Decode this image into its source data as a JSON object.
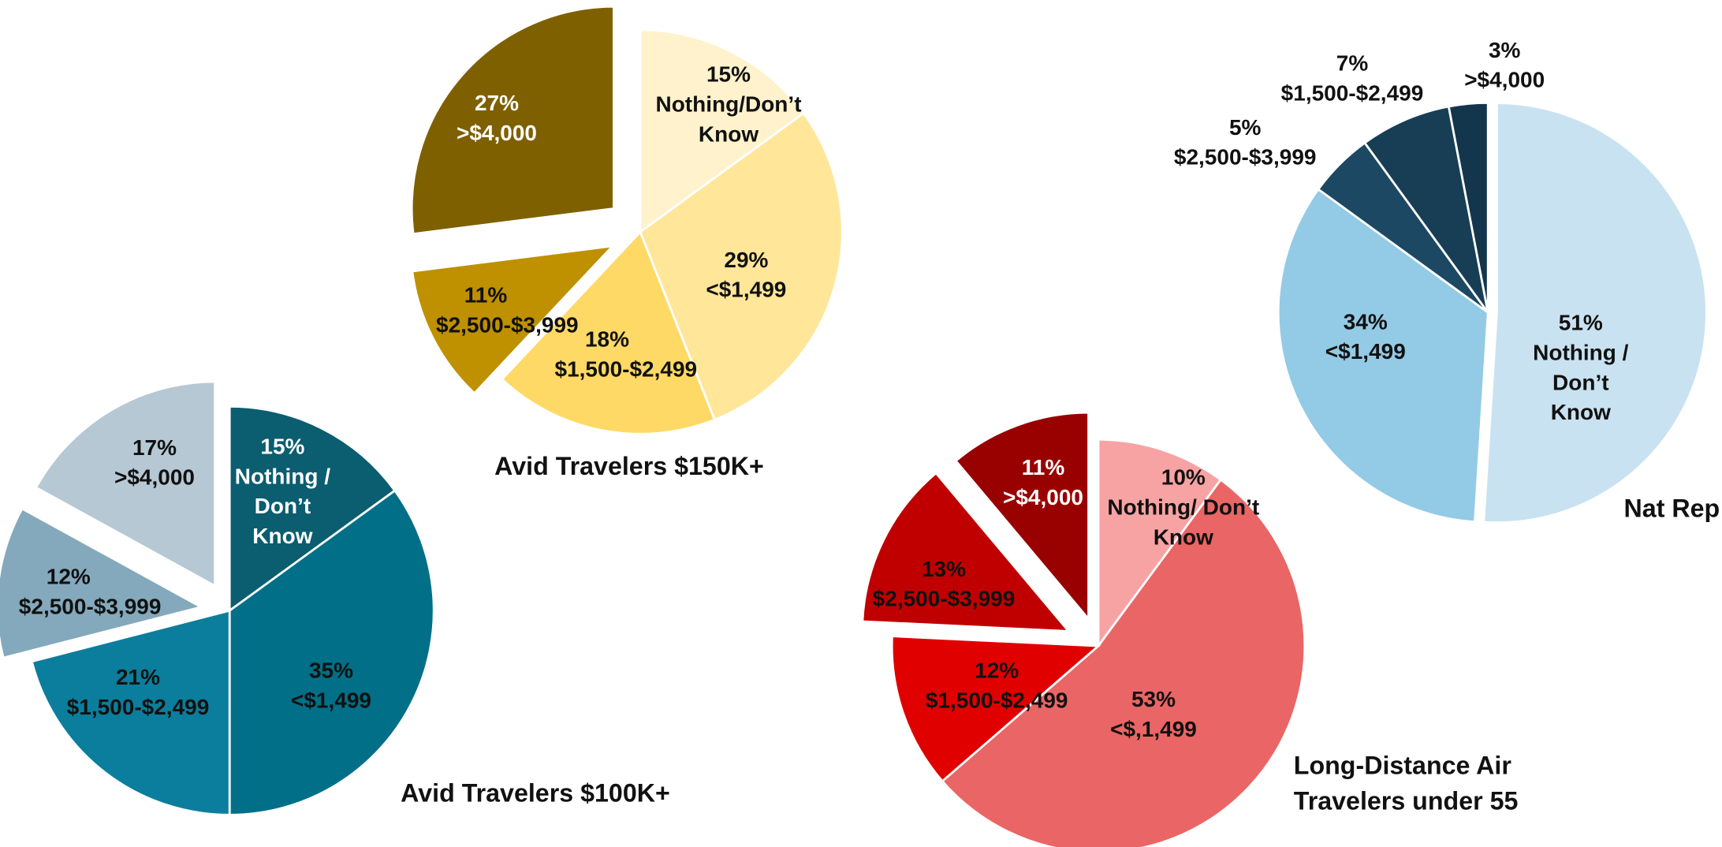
{
  "chart_data": [
    {
      "type": "pie",
      "title": "Avid Travelers $150K+",
      "categories": [
        "Nothing/Don’t Know",
        "<$1,499",
        "$1,500-$2,499",
        "$2,500-$3,999",
        ">$4,000"
      ],
      "values": [
        15,
        29,
        18,
        11,
        27
      ],
      "value_labels": [
        "15%",
        "29%",
        "18%",
        "11%",
        "27%"
      ],
      "colors": [
        "#FFF2CC",
        "#FFE699",
        "#FFD966",
        "#BF9000",
        "#7F6000"
      ]
    },
    {
      "type": "pie",
      "title": "Avid Travelers $100K+",
      "categories": [
        "Nothing / Don’t Know",
        "<$1,499",
        "$1,500-$2,499",
        "$2,500-$3,999",
        ">$4,000"
      ],
      "values": [
        15,
        35,
        21,
        12,
        17
      ],
      "value_labels": [
        "15%",
        "35%",
        "21%",
        "12%",
        "17%"
      ],
      "colors": [
        "#0B5D70",
        "#016F87",
        "#0A7E9C",
        "#84A9BC",
        "#B6C8D4"
      ]
    },
    {
      "type": "pie",
      "title": "Long-Distance Air Travelers under 55",
      "categories": [
        "Nothing/ Don’t Know",
        "<$,1,499",
        "$1,500-$2,499",
        "$2,500-$3,999",
        ">$4,000"
      ],
      "values": [
        10,
        53,
        12,
        13,
        11
      ],
      "value_labels": [
        "10%",
        "53%",
        "12%",
        "13%",
        "11%"
      ],
      "colors": [
        "#F8A3A3",
        "#EA6565",
        "#E00000",
        "#C00000",
        "#990000"
      ]
    },
    {
      "type": "pie",
      "title": "Nat Rep",
      "categories": [
        "Nothing / Don’t Know",
        "<$1,499",
        "$2,500-$3,999",
        "$1,500-$2,499",
        ">$4,000"
      ],
      "values": [
        51,
        34,
        5,
        7,
        3
      ],
      "value_labels": [
        "51%",
        "34%",
        "5%",
        "7%",
        "3%"
      ],
      "colors": [
        "#C9E2F1",
        "#93CAE6",
        "#1D4863",
        "#183E56",
        "#14364C"
      ]
    }
  ]
}
